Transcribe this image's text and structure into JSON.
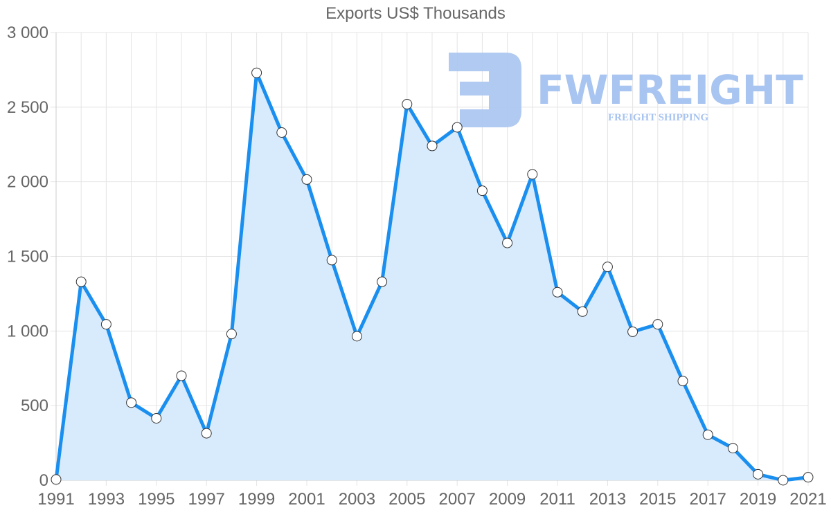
{
  "chart_data": {
    "type": "area",
    "title": "Exports US$ Thousands",
    "xlabel": "",
    "ylabel": "",
    "x": [
      1991,
      1992,
      1993,
      1994,
      1995,
      1996,
      1997,
      1998,
      1999,
      2000,
      2001,
      2002,
      2003,
      2004,
      2005,
      2006,
      2007,
      2008,
      2009,
      2010,
      2011,
      2012,
      2013,
      2014,
      2015,
      2016,
      2017,
      2018,
      2019,
      2020,
      2021
    ],
    "series": [
      {
        "name": "Exports US$ Thousands",
        "values": [
          5,
          1330,
          1045,
          520,
          415,
          700,
          315,
          980,
          2730,
          2330,
          2015,
          1475,
          965,
          1330,
          2520,
          2240,
          2365,
          1940,
          1590,
          2050,
          1260,
          1130,
          1430,
          995,
          1045,
          665,
          305,
          215,
          40,
          0,
          20
        ]
      }
    ],
    "x_tick_labels": [
      "1991",
      "1993",
      "1995",
      "1997",
      "1999",
      "2001",
      "2003",
      "2005",
      "2007",
      "2009",
      "2011",
      "2013",
      "2015",
      "2017",
      "2019",
      "2021"
    ],
    "y_tick_labels": [
      "0",
      "500",
      "1 000",
      "1 500",
      "2 000",
      "2 500",
      "3 000"
    ],
    "y_ticks": [
      0,
      500,
      1000,
      1500,
      2000,
      2500,
      3000
    ],
    "ylim": [
      0,
      3000
    ],
    "xlim": [
      1991,
      2021
    ],
    "grid": true,
    "legend": "none",
    "colors": {
      "line": "#1a8fef",
      "fill": "#d8ebfc",
      "point_fill": "#ffffff",
      "point_stroke": "#333333",
      "grid": "#e4e4e4"
    }
  },
  "watermark": {
    "brand": "FWFREIGHT",
    "tagline": "FREIGHT SHIPPING",
    "color": "#a8c4f0"
  }
}
